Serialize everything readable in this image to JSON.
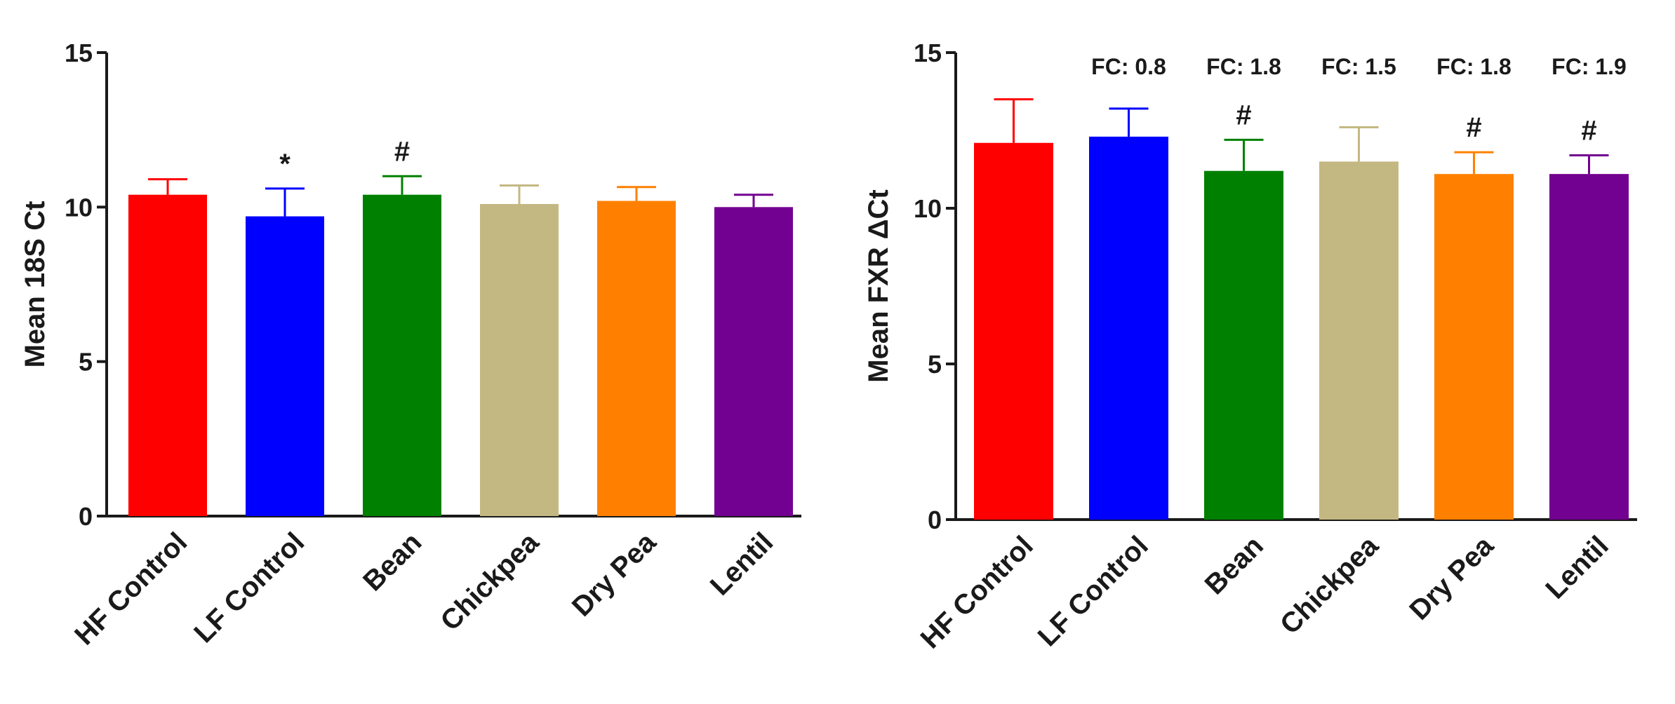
{
  "chart_data": [
    {
      "type": "bar",
      "title": "",
      "xlabel": "",
      "ylabel": "Mean 18S Ct",
      "ylim": [
        0,
        15
      ],
      "yticks": [
        0,
        5,
        10,
        15
      ],
      "categories": [
        "HF Control",
        "LF Control",
        "Bean",
        "Chickpea",
        "Dry Pea",
        "Lentil"
      ],
      "values": [
        10.4,
        9.7,
        10.4,
        10.1,
        10.2,
        10.0
      ],
      "errors": [
        0.5,
        0.9,
        0.6,
        0.6,
        0.45,
        0.4
      ],
      "annotations": [
        "",
        "*",
        "#",
        "",
        "",
        ""
      ],
      "colors": [
        "#ff0000",
        "#0000ff",
        "#008000",
        "#c4b882",
        "#ff8000",
        "#720090"
      ]
    },
    {
      "type": "bar",
      "title": "",
      "xlabel": "",
      "ylabel": "Mean FXR  ΔCt",
      "ylim": [
        0,
        15
      ],
      "yticks": [
        0,
        5,
        10,
        15
      ],
      "categories": [
        "HF Control",
        "LF Control",
        "Bean",
        "Chickpea",
        "Dry Pea",
        "Lentil"
      ],
      "values": [
        12.1,
        12.3,
        11.2,
        11.5,
        11.1,
        11.1
      ],
      "errors": [
        1.4,
        0.9,
        1.0,
        1.1,
        0.7,
        0.6
      ],
      "annotations": [
        "",
        "",
        "#",
        "",
        "#",
        "#"
      ],
      "fc_labels": [
        "",
        "FC: 0.8",
        "FC: 1.8",
        "FC: 1.5",
        "FC: 1.8",
        "FC: 1.9"
      ],
      "colors": [
        "#ff0000",
        "#0000ff",
        "#008000",
        "#c4b882",
        "#ff8000",
        "#720090"
      ]
    }
  ]
}
